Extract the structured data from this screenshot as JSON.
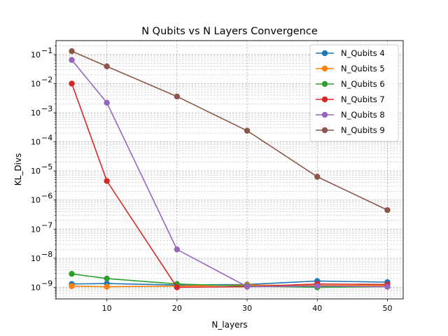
{
  "chart_data": {
    "type": "line",
    "title": "N Qubits vs N Layers Convergence",
    "xlabel": "N_layers",
    "ylabel": "KL_Divs",
    "x": [
      5,
      10,
      20,
      30,
      40,
      50
    ],
    "xlim": [
      2.75,
      52.25
    ],
    "xticks": [
      10,
      20,
      30,
      40,
      50
    ],
    "yscale": "log",
    "ylim": [
      4e-10,
      0.3
    ],
    "yticks": [
      {
        "value": 1e-09,
        "mantissa": "10",
        "exp": "−9"
      },
      {
        "value": 1e-08,
        "mantissa": "10",
        "exp": "−8"
      },
      {
        "value": 1e-07,
        "mantissa": "10",
        "exp": "−7"
      },
      {
        "value": 1e-06,
        "mantissa": "10",
        "exp": "−6"
      },
      {
        "value": 1e-05,
        "mantissa": "10",
        "exp": "−5"
      },
      {
        "value": 0.0001,
        "mantissa": "10",
        "exp": "−4"
      },
      {
        "value": 0.001,
        "mantissa": "10",
        "exp": "−3"
      },
      {
        "value": 0.01,
        "mantissa": "10",
        "exp": "−2"
      },
      {
        "value": 0.1,
        "mantissa": "10",
        "exp": "−1"
      }
    ],
    "grid": true,
    "legend_position": "upper-right",
    "series": [
      {
        "name": "N_Qubits 4",
        "color": "#1f77b4",
        "values": [
          1.3e-09,
          1.35e-09,
          1.2e-09,
          1.25e-09,
          1.65e-09,
          1.5e-09
        ]
      },
      {
        "name": "N_Qubits 5",
        "color": "#ff7f0e",
        "values": [
          1.1e-09,
          1.05e-09,
          1.1e-09,
          1.2e-09,
          1.15e-09,
          1.15e-09
        ]
      },
      {
        "name": "N_Qubits 6",
        "color": "#2ca02c",
        "values": [
          2.9e-09,
          2e-09,
          1.3e-09,
          1.1e-09,
          1e-09,
          1.05e-09
        ]
      },
      {
        "name": "N_Qubits 7",
        "color": "#d62728",
        "values": [
          0.01,
          4.5e-06,
          1e-09,
          1.05e-09,
          1.3e-09,
          1.25e-09
        ]
      },
      {
        "name": "N_Qubits 8",
        "color": "#9467bd",
        "values": [
          0.065,
          0.0022,
          2e-08,
          1.05e-09,
          1.1e-09,
          1.05e-09
        ]
      },
      {
        "name": "N_Qubits 9",
        "color": "#8c564b",
        "values": [
          0.13,
          0.039,
          0.0036,
          0.00024,
          6.3e-06,
          4.5e-07
        ]
      }
    ]
  }
}
